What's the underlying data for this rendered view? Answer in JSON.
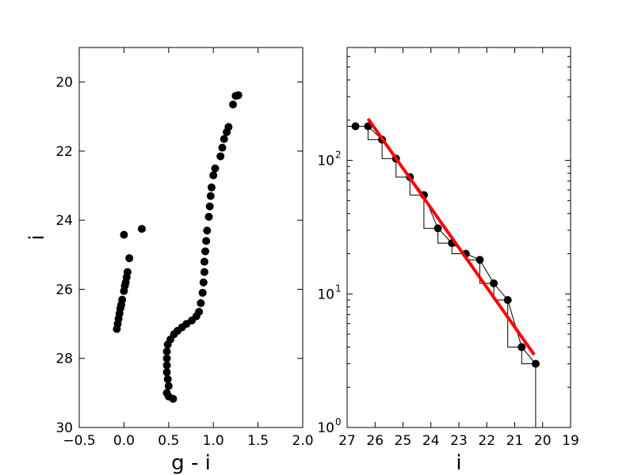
{
  "chart_data": [
    {
      "type": "scatter",
      "xlabel": "g - i",
      "ylabel": "i",
      "xlim": [
        -0.5,
        2.0
      ],
      "ylim": [
        30,
        19
      ],
      "y_inverted": true,
      "grid": false,
      "marker_color": "#000000",
      "x_ticks": [
        -0.5,
        0.0,
        0.5,
        1.0,
        1.5,
        2.0
      ],
      "x_tick_labels": [
        "−0.5",
        "0.0",
        "0.5",
        "1.0",
        "1.5",
        "2.0"
      ],
      "y_ticks": [
        20,
        22,
        24,
        26,
        28,
        30
      ],
      "y_tick_labels": [
        "20",
        "22",
        "24",
        "26",
        "28",
        "30"
      ],
      "series": [
        {
          "points": [
            [
              -0.08,
              27.15
            ],
            [
              -0.07,
              27.0
            ],
            [
              -0.06,
              26.85
            ],
            [
              -0.05,
              26.7
            ],
            [
              -0.04,
              26.55
            ],
            [
              -0.03,
              26.45
            ],
            [
              -0.02,
              26.3
            ],
            [
              0.0,
              26.05
            ],
            [
              0.01,
              25.9
            ],
            [
              0.02,
              25.8
            ],
            [
              0.03,
              25.65
            ],
            [
              0.04,
              25.5
            ],
            [
              0.06,
              25.1
            ],
            [
              0.0,
              24.42
            ],
            [
              0.2,
              24.25
            ],
            [
              0.48,
              29.0
            ],
            [
              0.5,
              29.1
            ],
            [
              0.55,
              29.17
            ],
            [
              0.5,
              28.8
            ],
            [
              0.49,
              28.6
            ],
            [
              0.48,
              28.4
            ],
            [
              0.48,
              28.2
            ],
            [
              0.48,
              28.0
            ],
            [
              0.48,
              27.8
            ],
            [
              0.49,
              27.6
            ],
            [
              0.52,
              27.45
            ],
            [
              0.56,
              27.3
            ],
            [
              0.6,
              27.2
            ],
            [
              0.65,
              27.1
            ],
            [
              0.7,
              27.0
            ],
            [
              0.76,
              26.9
            ],
            [
              0.81,
              26.78
            ],
            [
              0.84,
              26.65
            ],
            [
              0.86,
              26.4
            ],
            [
              0.88,
              26.1
            ],
            [
              0.89,
              25.8
            ],
            [
              0.9,
              25.5
            ],
            [
              0.9,
              25.2
            ],
            [
              0.91,
              24.9
            ],
            [
              0.92,
              24.6
            ],
            [
              0.93,
              24.3
            ],
            [
              0.95,
              23.9
            ],
            [
              0.96,
              23.6
            ],
            [
              0.97,
              23.3
            ],
            [
              0.98,
              23.05
            ],
            [
              1.0,
              22.7
            ],
            [
              1.02,
              22.5
            ],
            [
              1.08,
              22.15
            ],
            [
              1.1,
              21.9
            ],
            [
              1.12,
              21.65
            ],
            [
              1.15,
              21.45
            ],
            [
              1.17,
              21.3
            ],
            [
              1.22,
              20.65
            ],
            [
              1.25,
              20.4
            ],
            [
              1.28,
              20.38
            ]
          ]
        }
      ]
    },
    {
      "type": "line",
      "xlabel": "i",
      "ylabel": "",
      "xlim": [
        27,
        19
      ],
      "x_inverted": true,
      "yscale": "log",
      "ylim": [
        1,
        700
      ],
      "grid": false,
      "x_ticks": [
        27,
        26,
        25,
        24,
        23,
        22,
        21,
        20,
        19
      ],
      "x_tick_labels": [
        "27",
        "26",
        "25",
        "24",
        "23",
        "22",
        "21",
        "20",
        "19"
      ],
      "y_ticks": [
        1,
        10,
        100
      ],
      "y_tick_labels": [
        "10",
        "10",
        "10"
      ],
      "y_tick_exponents": [
        "0",
        "1",
        "2"
      ],
      "series": [
        {
          "style": "points-with-line",
          "color": "#000000",
          "x": [
            26.7,
            26.25,
            25.75,
            25.25,
            24.75,
            24.25,
            23.75,
            23.25,
            22.75,
            22.25,
            21.75,
            21.25,
            20.75,
            20.25
          ],
          "y": [
            180,
            180,
            143,
            103,
            75,
            55,
            31,
            24,
            20,
            18,
            12,
            9,
            4,
            3
          ]
        },
        {
          "style": "step",
          "color": "#000000",
          "x": [
            27.0,
            26.25,
            26.25,
            25.75,
            25.75,
            25.25,
            25.25,
            24.75,
            24.75,
            24.25,
            24.25,
            23.75,
            23.75,
            23.25,
            23.25,
            22.75,
            22.75,
            22.25,
            22.25,
            21.75,
            21.75,
            21.25,
            21.25,
            20.75,
            20.75,
            20.25,
            20.25
          ],
          "y": [
            180,
            180,
            143,
            143,
            103,
            103,
            75,
            75,
            55,
            55,
            31,
            31,
            24,
            24,
            20,
            20,
            18,
            18,
            12,
            12,
            9,
            9,
            4,
            4,
            3,
            3,
            1
          ]
        },
        {
          "style": "fit-line",
          "color": "#ff0000",
          "x": [
            26.25,
            20.3
          ],
          "y": [
            205,
            3.5
          ]
        }
      ]
    }
  ]
}
